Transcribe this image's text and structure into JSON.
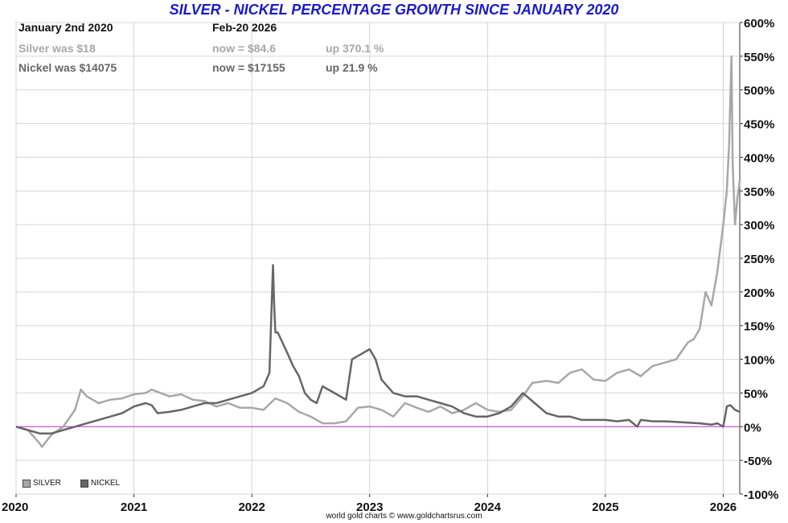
{
  "title": "SILVER - NICKEL PERCENTAGE GROWTH SINCE JANUARY 2020",
  "info": {
    "start_label": "January 2nd 2020",
    "end_label": "Feb-20  2026",
    "silver_was": "Silver was $18",
    "silver_now": "now = $84.6",
    "silver_up": "up 370.1 %",
    "nickel_was": "Nickel was $14075",
    "nickel_now": "now = $17155",
    "nickel_up": "up 21.9 %"
  },
  "credit": "world gold charts © www.goldchartsrus.com",
  "colors": {
    "silver": "#a8a8a8",
    "nickel": "#666666",
    "zero_line": "#cc33cc",
    "grid": "#d4d4e6",
    "title": "#1a1acc"
  },
  "chart_data": {
    "type": "line",
    "title": "SILVER - NICKEL PERCENTAGE GROWTH SINCE JANUARY 2020",
    "xlabel": "",
    "ylabel": "",
    "xlim": [
      2020.0,
      2026.14
    ],
    "ylim": [
      -100,
      600
    ],
    "x_ticks": [
      2020,
      2021,
      2022,
      2023,
      2024,
      2025,
      2026
    ],
    "x_tick_labels": [
      "2020",
      "2021",
      "2022",
      "2023",
      "2024",
      "2025",
      "2026"
    ],
    "y_ticks": [
      600,
      550,
      500,
      450,
      400,
      350,
      300,
      250,
      200,
      150,
      100,
      50,
      0,
      -50,
      -100
    ],
    "y_tick_labels": [
      "600%",
      "550%",
      "500%",
      "450%",
      "400%",
      "350%",
      "300%",
      "250%",
      "200%",
      "150%",
      "100%",
      "50%",
      "0%",
      "-50%",
      "-100%"
    ],
    "reference_line": 0,
    "grid": true,
    "legend_position": "bottom-left",
    "series": [
      {
        "name": "SILVER",
        "color": "#a8a8a8",
        "x": [
          2020.0,
          2020.1,
          2020.2,
          2020.22,
          2020.3,
          2020.4,
          2020.5,
          2020.55,
          2020.6,
          2020.7,
          2020.8,
          2020.9,
          2021.0,
          2021.1,
          2021.15,
          2021.3,
          2021.4,
          2021.5,
          2021.6,
          2021.7,
          2021.8,
          2021.9,
          2022.0,
          2022.1,
          2022.2,
          2022.3,
          2022.4,
          2022.5,
          2022.6,
          2022.7,
          2022.8,
          2022.9,
          2023.0,
          2023.1,
          2023.2,
          2023.3,
          2023.4,
          2023.5,
          2023.6,
          2023.7,
          2023.8,
          2023.9,
          2024.0,
          2024.1,
          2024.2,
          2024.3,
          2024.38,
          2024.5,
          2024.6,
          2024.7,
          2024.8,
          2024.9,
          2025.0,
          2025.1,
          2025.2,
          2025.3,
          2025.4,
          2025.5,
          2025.6,
          2025.7,
          2025.75,
          2025.8,
          2025.85,
          2025.9,
          2025.95,
          2026.0,
          2026.03,
          2026.05,
          2026.07,
          2026.08,
          2026.1,
          2026.12,
          2026.14
        ],
        "y": [
          0,
          -5,
          -25,
          -30,
          -12,
          0,
          25,
          55,
          45,
          35,
          40,
          42,
          48,
          50,
          55,
          45,
          48,
          40,
          38,
          30,
          35,
          28,
          28,
          25,
          42,
          35,
          22,
          15,
          5,
          5,
          8,
          28,
          30,
          25,
          15,
          35,
          28,
          22,
          30,
          20,
          25,
          35,
          25,
          22,
          25,
          45,
          65,
          68,
          65,
          80,
          85,
          70,
          68,
          80,
          85,
          75,
          90,
          95,
          100,
          125,
          130,
          145,
          200,
          180,
          230,
          300,
          350,
          420,
          550,
          390,
          300,
          340,
          365
        ]
      },
      {
        "name": "NICKEL",
        "color": "#666666",
        "x": [
          2020.0,
          2020.1,
          2020.2,
          2020.3,
          2020.4,
          2020.5,
          2020.6,
          2020.7,
          2020.8,
          2020.9,
          2021.0,
          2021.1,
          2021.15,
          2021.2,
          2021.3,
          2021.4,
          2021.5,
          2021.6,
          2021.7,
          2021.8,
          2021.9,
          2022.0,
          2022.1,
          2022.15,
          2022.18,
          2022.19,
          2022.2,
          2022.22,
          2022.3,
          2022.35,
          2022.4,
          2022.45,
          2022.5,
          2022.55,
          2022.6,
          2022.7,
          2022.8,
          2022.85,
          2022.95,
          2023.0,
          2023.05,
          2023.1,
          2023.2,
          2023.3,
          2023.4,
          2023.5,
          2023.6,
          2023.7,
          2023.8,
          2023.9,
          2024.0,
          2024.1,
          2024.2,
          2024.3,
          2024.4,
          2024.5,
          2024.6,
          2024.7,
          2024.8,
          2024.9,
          2025.0,
          2025.1,
          2025.2,
          2025.27,
          2025.3,
          2025.4,
          2025.5,
          2025.6,
          2025.7,
          2025.8,
          2025.9,
          2025.95,
          2026.0,
          2026.03,
          2026.06,
          2026.1,
          2026.14
        ],
        "y": [
          0,
          -5,
          -10,
          -10,
          -5,
          0,
          5,
          10,
          15,
          20,
          30,
          35,
          32,
          20,
          22,
          25,
          30,
          35,
          35,
          40,
          45,
          50,
          60,
          80,
          240,
          180,
          140,
          140,
          110,
          90,
          75,
          50,
          40,
          35,
          60,
          50,
          40,
          100,
          110,
          115,
          100,
          70,
          50,
          45,
          45,
          40,
          35,
          30,
          20,
          15,
          15,
          20,
          30,
          50,
          35,
          20,
          15,
          15,
          10,
          10,
          10,
          8,
          10,
          0,
          10,
          8,
          8,
          7,
          6,
          5,
          3,
          5,
          0,
          30,
          32,
          25,
          22
        ]
      }
    ]
  }
}
